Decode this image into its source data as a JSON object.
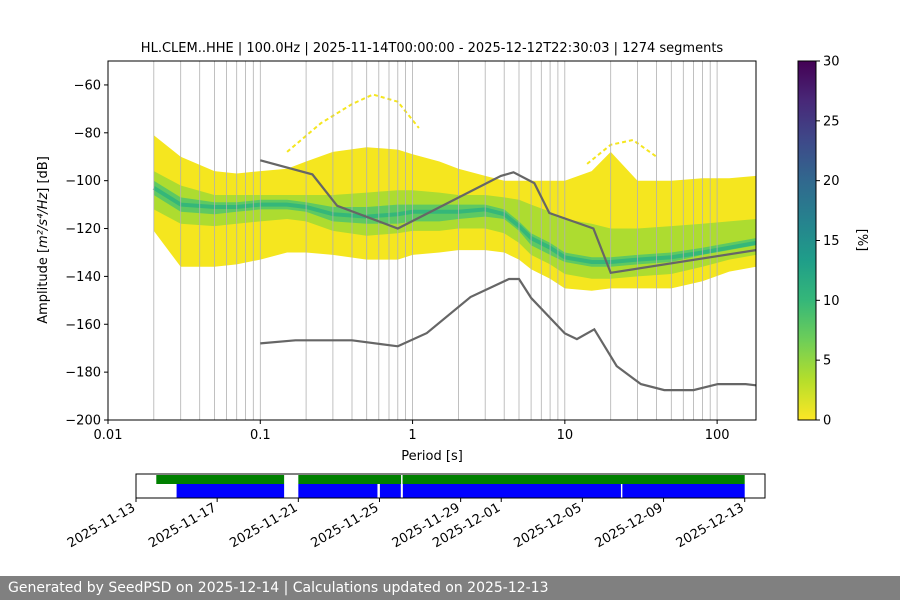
{
  "chart_data": [
    {
      "type": "heatmap",
      "title": "HL.CLEM..HHE | 100.0Hz | 2025-11-14T00:00:00 - 2025-12-12T22:30:03 | 1274 segments",
      "xlabel": "Period [s]",
      "ylabel_prefix": "Amplitude [",
      "ylabel_math": "m²/s⁴/Hz",
      "ylabel_suffix": "] [dB]",
      "x_scale": "log",
      "xlim": [
        0.01,
        180
      ],
      "ylim": [
        -200,
        -50
      ],
      "grid": "vertical",
      "x_ticks": [
        {
          "value": 0.01,
          "label": "0.01"
        },
        {
          "value": 0.1,
          "label": "0.1"
        },
        {
          "value": 1,
          "label": "1"
        },
        {
          "value": 10,
          "label": "10"
        },
        {
          "value": 100,
          "label": "100"
        }
      ],
      "y_ticks": [
        {
          "value": -60,
          "label": "−60"
        },
        {
          "value": -80,
          "label": "−80"
        },
        {
          "value": -100,
          "label": "−100"
        },
        {
          "value": -120,
          "label": "−120"
        },
        {
          "value": -140,
          "label": "−140"
        },
        {
          "value": -160,
          "label": "−160"
        },
        {
          "value": -180,
          "label": "−180"
        },
        {
          "value": -200,
          "label": "−200"
        }
      ],
      "psd_x": [
        0.02,
        0.03,
        0.05,
        0.07,
        0.1,
        0.15,
        0.2,
        0.3,
        0.5,
        0.8,
        1,
        1.5,
        2,
        3,
        4,
        5,
        6,
        8,
        10,
        15,
        20,
        30,
        50,
        80,
        120,
        180
      ],
      "bands": [
        {
          "name": "outer-low",
          "color": "#f5e61f",
          "upper": [
            -81,
            -90,
            -96,
            -97,
            -96,
            -95,
            -92,
            -88,
            -86,
            -87,
            -89,
            -92,
            -95,
            -98,
            -100,
            -100,
            -100,
            -100,
            -100,
            -96,
            -88,
            -100,
            -100,
            -99,
            -99,
            -98
          ],
          "lower": [
            -121,
            -136,
            -136,
            -135,
            -133,
            -130,
            -130,
            -131,
            -133,
            -133,
            -131,
            -130,
            -129,
            -129,
            -130,
            -133,
            -137,
            -141,
            -145,
            -146,
            -145,
            -145,
            -145,
            -142,
            -138,
            -136
          ]
        },
        {
          "name": "middle",
          "color": "#addc30",
          "upper": [
            -96,
            -102,
            -106,
            -106,
            -106,
            -106,
            -106,
            -106,
            -105,
            -104,
            -104,
            -105,
            -106,
            -106,
            -107,
            -108,
            -110,
            -113,
            -116,
            -118,
            -120,
            -120,
            -119,
            -118,
            -117,
            -116
          ],
          "lower": [
            -112,
            -118,
            -119,
            -118,
            -117,
            -116,
            -117,
            -121,
            -123,
            -122,
            -121,
            -121,
            -120,
            -120,
            -122,
            -126,
            -131,
            -135,
            -139,
            -141,
            -141,
            -140,
            -139,
            -136,
            -133,
            -131
          ]
        },
        {
          "name": "core",
          "color": "#5ec962",
          "upper": [
            -100,
            -107,
            -109,
            -109,
            -108,
            -108,
            -109,
            -111,
            -111,
            -110,
            -110,
            -110,
            -110,
            -110,
            -112,
            -117,
            -122,
            -126,
            -130,
            -132,
            -132,
            -131,
            -130,
            -128,
            -126,
            -124
          ],
          "lower": [
            -106,
            -113,
            -114,
            -113,
            -112,
            -112,
            -113,
            -117,
            -118,
            -118,
            -117,
            -117,
            -116,
            -115,
            -116,
            -121,
            -127,
            -131,
            -134,
            -136,
            -136,
            -135,
            -134,
            -131,
            -129,
            -127
          ]
        }
      ],
      "mode_line": {
        "color": "#35b779",
        "x": [
          0.02,
          0.03,
          0.05,
          0.07,
          0.1,
          0.15,
          0.2,
          0.3,
          0.5,
          0.8,
          1,
          1.5,
          2,
          3,
          4,
          5,
          6,
          8,
          10,
          15,
          20,
          30,
          50,
          80,
          120,
          180
        ],
        "y": [
          -103,
          -110,
          -111,
          -111,
          -110,
          -110,
          -111,
          -114,
          -115,
          -114,
          -113,
          -113,
          -113,
          -112,
          -114,
          -119,
          -124,
          -128,
          -132,
          -134,
          -134,
          -133,
          -132,
          -130,
          -128,
          -126
        ]
      },
      "spikes": [
        {
          "color": "#f5e61f",
          "x": [
            0.15,
            0.25,
            0.4,
            0.55,
            0.8,
            1.1
          ],
          "y": [
            -88,
            -76,
            -68,
            -64,
            -67,
            -78
          ]
        },
        {
          "color": "#f5e61f",
          "x": [
            14,
            20,
            28,
            40
          ],
          "y": [
            -93,
            -85,
            -83,
            -90
          ]
        }
      ],
      "nhnm": {
        "x": [
          0.1,
          0.22,
          0.32,
          0.8,
          3.8,
          4.6,
          6.3,
          7.9,
          15.4,
          20,
          180
        ],
        "y": [
          -91.5,
          -97.4,
          -110.5,
          -120,
          -98,
          -96.5,
          -101,
          -113.5,
          -120,
          -138.5,
          -129
        ]
      },
      "nlnm": {
        "x": [
          0.1,
          0.17,
          0.4,
          0.8,
          1.24,
          2.4,
          4.3,
          5,
          6,
          10,
          12,
          15.6,
          21.9,
          31.6,
          45,
          70,
          101,
          154,
          180
        ],
        "y": [
          -168,
          -166.7,
          -166.7,
          -169.2,
          -163.7,
          -148.6,
          -141.1,
          -141.1,
          -149,
          -163.8,
          -166.2,
          -162.1,
          -177.5,
          -185,
          -187.5,
          -187.5,
          -185,
          -185,
          -185.5
        ]
      }
    },
    {
      "type": "heatmap",
      "name": "colorbar",
      "label": "[%]",
      "range": [
        0,
        30
      ],
      "ticks": [
        {
          "value": 0,
          "label": "0"
        },
        {
          "value": 5,
          "label": "5"
        },
        {
          "value": 10,
          "label": "10"
        },
        {
          "value": 15,
          "label": "15"
        },
        {
          "value": 20,
          "label": "20"
        },
        {
          "value": 25,
          "label": "25"
        },
        {
          "value": 30,
          "label": "30"
        }
      ],
      "colors": [
        "#fde725",
        "#b5de2b",
        "#6ece58",
        "#35b779",
        "#1f9e89",
        "#26828e",
        "#31688e",
        "#3e4989",
        "#482878",
        "#440154"
      ]
    },
    {
      "type": "table",
      "name": "data-availability",
      "x_start": "2025-11-13",
      "x_end": "2025-12-14",
      "x_ticks": [
        "2025-11-13",
        "2025-11-17",
        "2025-11-21",
        "2025-11-25",
        "2025-11-29",
        "2025-12-01",
        "2025-12-05",
        "2025-12-09",
        "2025-12-13"
      ],
      "green_color": "#008000",
      "blue_color": "#0000ff",
      "green_segments": [
        [
          "2025-11-14",
          "2025-11-20.3"
        ],
        [
          "2025-11-21",
          "2025-12-13"
        ]
      ],
      "blue_segments": [
        [
          "2025-11-15",
          "2025-11-20.3"
        ],
        [
          "2025-11-21",
          "2025-11-24.9"
        ],
        [
          "2025-11-25.02",
          "2025-11-26.05"
        ],
        [
          "2025-11-26.15",
          "2025-12-06.9"
        ],
        [
          "2025-12-06.97",
          "2025-12-13"
        ]
      ],
      "gap_markers": [
        "2025-11-26.1"
      ]
    }
  ],
  "footer": {
    "text": "Generated by SeedPSD on 2025-12-14 | Calculations updated on 2025-12-13"
  }
}
